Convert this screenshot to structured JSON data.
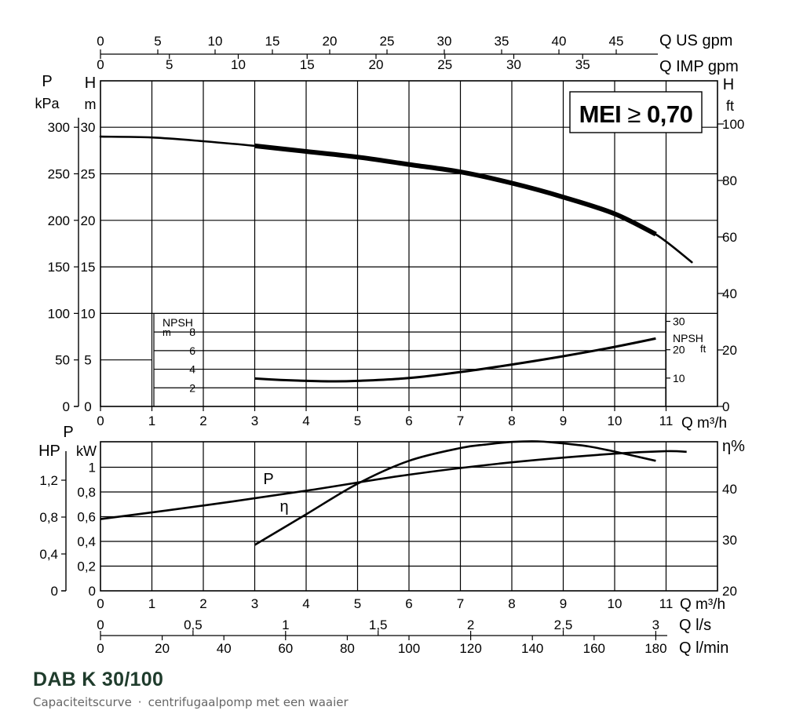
{
  "chart_data": [
    {
      "type": "line",
      "panel": "head-and-npsh",
      "x_axis": {
        "label": "Q m³/h",
        "ticks": [
          "0",
          "1",
          "2",
          "3",
          "4",
          "5",
          "6",
          "7",
          "8",
          "9",
          "10",
          "11"
        ],
        "range": [
          0,
          11
        ]
      },
      "top_axis_us": {
        "label": "Q US gpm",
        "ticks": [
          "0",
          "5",
          "10",
          "15",
          "20",
          "25",
          "30",
          "35",
          "40",
          "45"
        ]
      },
      "top_axis_imp": {
        "label": "Q IMP gpm",
        "ticks": [
          "0",
          "5",
          "10",
          "15",
          "20",
          "25",
          "30",
          "35"
        ]
      },
      "left_axis_head": {
        "label_top": "H",
        "label_unit": "m",
        "ticks": [
          "0",
          "5",
          "10",
          "15",
          "20",
          "25",
          "30"
        ],
        "range": [
          0,
          30
        ]
      },
      "left_axis_pressure": {
        "label_top": "P",
        "label_unit": "kPa",
        "ticks": [
          "0",
          "50",
          "100",
          "150",
          "200",
          "250",
          "300"
        ]
      },
      "right_axis_head_ft": {
        "label_top": "H",
        "label_unit": "ft",
        "ticks": [
          "0",
          "20",
          "40",
          "60",
          "80",
          "100"
        ]
      },
      "npsh_left": {
        "label_top": "NPSH",
        "label_unit": "m",
        "ticks": [
          "2",
          "4",
          "6",
          "8"
        ]
      },
      "npsh_right": {
        "label_top": "NPSH",
        "label_unit": "ft",
        "ticks": [
          "10",
          "20",
          "30"
        ]
      },
      "badge": {
        "prefix": "MEI ",
        "symbol": "≥",
        "value": " 0,70"
      },
      "series": [
        {
          "name": "H",
          "x": [
            0,
            1,
            2,
            3,
            4,
            5,
            6,
            7,
            8,
            9,
            10,
            10.8,
            11.5
          ],
          "y": [
            29,
            28.9,
            28.5,
            28.0,
            27.4,
            26.8,
            26.0,
            25.2,
            24.0,
            22.5,
            20.7,
            18.5,
            15.5
          ],
          "emphasized_range": [
            3,
            10.8
          ]
        },
        {
          "name": "NPSH",
          "x": [
            3,
            3.5,
            4,
            4.5,
            5,
            6,
            7,
            8,
            9,
            10,
            10.8
          ],
          "y": [
            3.0,
            2.85,
            2.75,
            2.7,
            2.75,
            3.05,
            3.7,
            4.5,
            5.4,
            6.4,
            7.3
          ]
        }
      ]
    },
    {
      "type": "line",
      "panel": "power-and-efficiency",
      "x_axis": {
        "label": "Q m³/h",
        "ticks": [
          "0",
          "1",
          "2",
          "3",
          "4",
          "5",
          "6",
          "7",
          "8",
          "9",
          "10",
          "11"
        ],
        "range": [
          0,
          11
        ]
      },
      "axis_ls": {
        "label": "Q l/s",
        "ticks": [
          "0",
          "0,5",
          "1",
          "1,5",
          "2",
          "2,5",
          "3"
        ]
      },
      "axis_lmin": {
        "label": "Q l/min",
        "ticks": [
          "0",
          "20",
          "40",
          "60",
          "80",
          "100",
          "120",
          "140",
          "160",
          "180"
        ]
      },
      "left_axis_hp": {
        "label": "HP",
        "ticks": [
          "0",
          "0,4",
          "0,8",
          "1,2"
        ]
      },
      "left_axis_kw": {
        "label_top": "P",
        "label_unit": "kW",
        "ticks": [
          "0",
          "0,2",
          "0,4",
          "0,6",
          "0,8",
          "1"
        ],
        "range": [
          0,
          1.2
        ]
      },
      "right_axis_eff": {
        "label": "η%",
        "ticks": [
          "20",
          "30",
          "40"
        ],
        "range": [
          20,
          50
        ]
      },
      "series": [
        {
          "name": "P",
          "unit": "kW",
          "x": [
            0,
            2,
            4,
            6,
            8,
            10,
            11,
            11.4
          ],
          "y": [
            0.58,
            0.69,
            0.81,
            0.94,
            1.04,
            1.11,
            1.13,
            1.125
          ]
        },
        {
          "name": "η",
          "unit": "%",
          "x": [
            3,
            4,
            5,
            6,
            7,
            7.5,
            8,
            8.5,
            9,
            9.5,
            10,
            10.8
          ],
          "y": [
            29.0,
            35.0,
            41.0,
            45.5,
            48.0,
            48.7,
            49.2,
            49.3,
            48.9,
            48.3,
            47.3,
            45.5
          ]
        }
      ]
    }
  ],
  "caption": {
    "title": "DAB K 30/100",
    "subtitle_left": "Capaciteitscurve",
    "separator": "·",
    "subtitle_right": "centrifugaalpomp met een waaier"
  }
}
